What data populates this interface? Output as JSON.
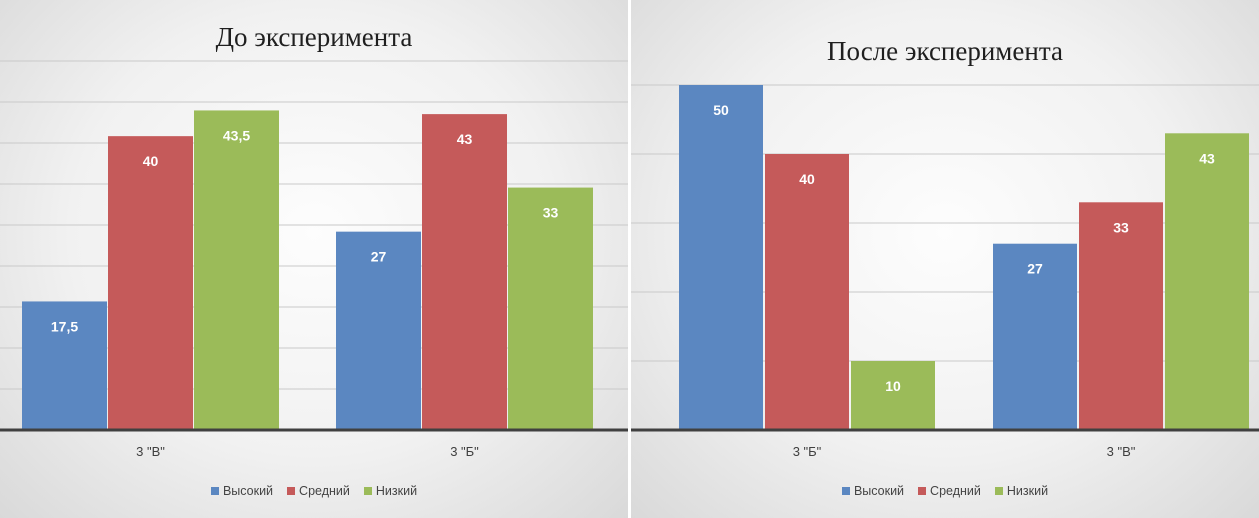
{
  "chart_data": [
    {
      "type": "bar",
      "title": "До эксперимента",
      "categories": [
        "3 \"В\"",
        "3 \"Б\""
      ],
      "ylim": [
        0,
        52
      ],
      "grid": true,
      "legend_position": "bottom",
      "data_labels": [
        [
          "17,5",
          "40",
          "43,5"
        ],
        [
          "27",
          "43",
          "33"
        ]
      ],
      "series": [
        {
          "name": "Высокий",
          "color": "#5b87c1",
          "values": [
            17.5,
            27
          ]
        },
        {
          "name": "Средний",
          "color": "#c55a5a",
          "values": [
            40,
            43
          ]
        },
        {
          "name": "Низкий",
          "color": "#9bbb59",
          "values": [
            43.5,
            33
          ]
        }
      ]
    },
    {
      "type": "bar",
      "title": "После эксперимента",
      "categories": [
        "3 \"Б\"",
        "3 \"В\""
      ],
      "ylim": [
        0,
        50
      ],
      "grid": true,
      "legend_position": "bottom",
      "data_labels": [
        [
          "50",
          "40",
          "10"
        ],
        [
          "27",
          "33",
          "43"
        ]
      ],
      "series": [
        {
          "name": "Высокий",
          "color": "#5b87c1",
          "values": [
            50,
            27
          ]
        },
        {
          "name": "Средний",
          "color": "#c55a5a",
          "values": [
            40,
            33
          ]
        },
        {
          "name": "Низкий",
          "color": "#9bbb59",
          "values": [
            10,
            43
          ]
        }
      ]
    }
  ]
}
